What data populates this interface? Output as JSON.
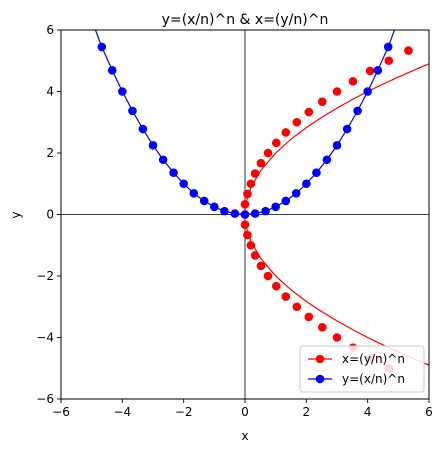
{
  "chart_data": {
    "type": "line",
    "title": "y=(x/n)^n & x=(y/n)^n",
    "xlabel": "x",
    "ylabel": "y",
    "xlim": [
      -6,
      6
    ],
    "ylim": [
      -6,
      6
    ],
    "xticks": [
      -6,
      -4,
      -2,
      0,
      2,
      4,
      6
    ],
    "yticks": [
      -6,
      -4,
      -2,
      0,
      2,
      4,
      6
    ],
    "xtick_labels": [
      "−6",
      "−4",
      "−2",
      "0",
      "2",
      "4",
      "6"
    ],
    "ytick_labels": [
      "−6",
      "−4",
      "−2",
      "0",
      "2",
      "4",
      "6"
    ],
    "grid": false,
    "axis_lines_at_zero": true,
    "legend": {
      "position": "lower-right",
      "entries": [
        "x=(y/n)^n",
        "y=(x/n)^n"
      ]
    },
    "series": [
      {
        "name": "x=(y/n)^n",
        "color": "#ff0000",
        "marker": "circle",
        "line": {
          "x": [
            6.0,
            5.5,
            5.0,
            4.5,
            4.0,
            3.5,
            3.0,
            2.5,
            2.0,
            1.5,
            1.0,
            0.5,
            0.2,
            0.0,
            0.0,
            0.2,
            0.5,
            1.0,
            1.5,
            2.0,
            2.5,
            3.0,
            3.5,
            4.0,
            4.5,
            5.0,
            5.5,
            6.0
          ],
          "y": [
            -4.9,
            -4.69,
            -4.47,
            -4.24,
            -4.0,
            -3.74,
            -3.46,
            -3.16,
            -2.83,
            -2.45,
            -2.0,
            -1.41,
            -0.89,
            -0.3,
            0.3,
            0.89,
            1.41,
            2.0,
            2.45,
            2.83,
            3.16,
            3.46,
            3.74,
            4.0,
            4.24,
            4.47,
            4.69,
            4.9
          ]
        },
        "points": {
          "x": [
            0.0,
            0.0,
            0.08,
            0.19,
            0.33,
            0.52,
            0.75,
            1.02,
            1.33,
            1.69,
            2.08,
            2.52,
            3.0,
            3.52,
            4.08,
            4.69,
            5.33
          ],
          "y": [
            0.0,
            0.33,
            0.67,
            1.0,
            1.33,
            1.67,
            2.0,
            2.33,
            2.67,
            3.0,
            3.33,
            3.67,
            4.0,
            4.33,
            4.67,
            5.0,
            5.33
          ]
        },
        "points_lower": {
          "x": [
            0.0,
            0.0,
            0.08,
            0.19,
            0.33,
            0.52,
            0.75,
            1.02,
            1.33,
            1.69,
            2.08,
            2.52,
            3.0,
            3.52,
            4.08,
            4.69
          ],
          "y": [
            0.0,
            -0.33,
            -0.67,
            -1.0,
            -1.33,
            -1.67,
            -2.0,
            -2.33,
            -2.67,
            -3.0,
            -3.33,
            -3.67,
            -4.0,
            -4.33,
            -4.67,
            -5.0
          ]
        }
      },
      {
        "name": "y=(x/n)^n",
        "color": "#0000ff",
        "marker": "circle",
        "x": [
          -4.67,
          -4.33,
          -4.0,
          -3.67,
          -3.33,
          -3.0,
          -2.67,
          -2.33,
          -2.0,
          -1.67,
          -1.33,
          -1.0,
          -0.67,
          -0.33,
          0.0,
          0.33,
          0.67,
          1.0,
          1.33,
          1.67,
          2.0,
          2.33,
          2.67,
          3.0,
          3.33,
          3.67,
          4.0,
          4.33,
          4.67
        ],
        "y": [
          5.45,
          4.69,
          4.0,
          3.37,
          2.78,
          2.25,
          1.78,
          1.36,
          1.0,
          0.69,
          0.44,
          0.25,
          0.11,
          0.03,
          0.0,
          0.03,
          0.11,
          0.25,
          0.44,
          0.69,
          1.0,
          1.36,
          1.78,
          2.25,
          2.78,
          3.37,
          4.0,
          4.69,
          5.45
        ]
      }
    ]
  }
}
